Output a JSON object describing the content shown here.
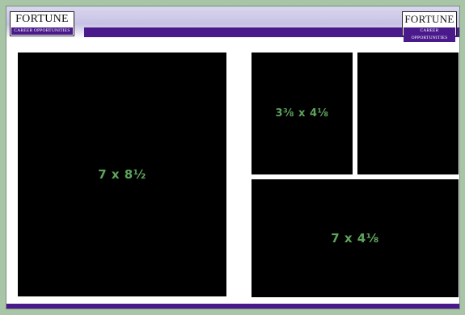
{
  "header": {
    "left_logo": {
      "wordmark": "FORTUNE",
      "tagline": "Career Opportunities"
    },
    "right_logo": {
      "wordmark": "FORTUNE",
      "tagline": "Career Opportunities"
    }
  },
  "ads": {
    "large": {
      "label": "7 x 8½"
    },
    "small_left": {
      "label": "3⅜ x 4⅛"
    },
    "small_right": {
      "label": ""
    },
    "wide": {
      "label": "7 x 4⅛"
    }
  },
  "colors": {
    "accent_purple": "#4a1a8c",
    "background_green": "#a9c5a8",
    "label_green": "#5ea45c",
    "ad_block": "#000000"
  }
}
